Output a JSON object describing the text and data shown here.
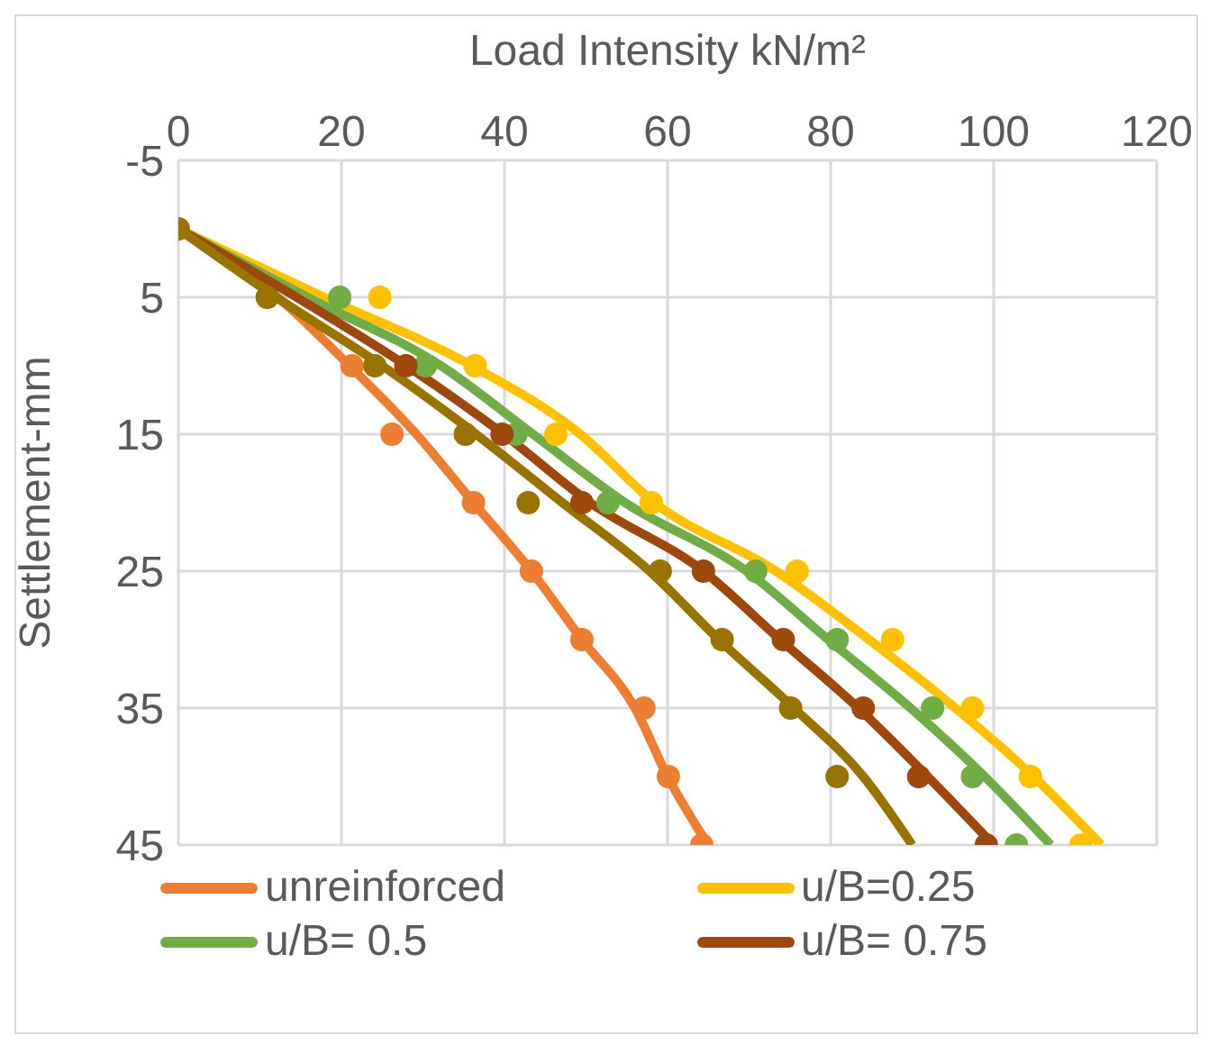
{
  "chart_data": {
    "type": "scatter",
    "xlabel": "Load Intensity kN/m²",
    "ylabel": "Settlement-mm",
    "xlim": [
      0,
      120
    ],
    "xticks": [
      0,
      20,
      40,
      60,
      80,
      100,
      120
    ],
    "ylim": [
      45,
      -5
    ],
    "yticks": [
      -5,
      5,
      15,
      25,
      35,
      45
    ],
    "grid": true,
    "legend": "bottom",
    "series": [
      {
        "name": "unreinforced",
        "type": "scatter",
        "marker": "circle",
        "color": "#ed7d31",
        "x": [
          21.3,
          26.2,
          36.2,
          43.3,
          49.5,
          57.1,
          60.1,
          64.2
        ],
        "values": [
          10,
          15,
          20,
          25,
          30,
          35,
          40,
          45
        ]
      },
      {
        "name": "u/B=0.25",
        "type": "scatter",
        "marker": "circle",
        "color": "#ffc000",
        "x": [
          24.7,
          36.4,
          46.3,
          58,
          75.9,
          87.6,
          97.4,
          104.5,
          110.7
        ],
        "values": [
          5,
          10,
          15,
          20,
          25,
          30,
          35,
          40,
          45
        ]
      },
      {
        "name": "u/B= 0.5",
        "type": "scatter",
        "marker": "circle",
        "color": "#70ad47",
        "x": [
          19.8,
          30.3,
          41.4,
          52.7,
          70.8,
          80.8,
          92.5,
          97.4,
          102.8
        ],
        "values": [
          5,
          10,
          15,
          20,
          25,
          30,
          35,
          40,
          45
        ]
      },
      {
        "name": "u/B= 0.75",
        "type": "scatter",
        "marker": "circle",
        "color": "#9e480e",
        "x": [
          27.9,
          39.7,
          49.5,
          64.4,
          74.2,
          84,
          90.8,
          99.1
        ],
        "values": [
          10,
          15,
          20,
          25,
          30,
          35,
          40,
          45
        ]
      },
      {
        "marker": "circle",
        "color": "#997300",
        "x": [
          0,
          10.9,
          24.1,
          35.2,
          42.9,
          59.1,
          66.7,
          75.1,
          80.8
        ],
        "values": [
          0,
          5,
          10,
          15,
          20,
          25,
          30,
          35,
          40
        ]
      },
      {
        "type": "line",
        "marker": "none",
        "color": "#ed7d31",
        "x": [
          0,
          12.2,
          21,
          29.2,
          36.2,
          43.3,
          49.5,
          56,
          60,
          65
        ],
        "values": [
          0,
          5,
          10,
          15,
          20,
          25,
          30,
          35,
          40,
          45
        ]
      },
      {
        "type": "line",
        "marker": "none",
        "color": "#ffc000",
        "x": [
          0,
          17.9,
          36,
          49.3,
          58.4,
          73.3,
          84.7,
          95.3,
          104.9,
          113.2
        ],
        "values": [
          0,
          5,
          10,
          15,
          20,
          25,
          30,
          35,
          40,
          45
        ]
      },
      {
        "type": "line",
        "marker": "none",
        "color": "#70ad47",
        "x": [
          0,
          15.8,
          32.2,
          43.5,
          54.8,
          69.7,
          79.7,
          89.8,
          98.9,
          107
        ],
        "values": [
          0,
          5,
          10,
          15,
          20,
          25,
          30,
          35,
          40,
          45
        ]
      },
      {
        "type": "line",
        "marker": "none",
        "color": "#9e480e",
        "x": [
          0,
          14.5,
          28,
          39.9,
          50.5,
          64.4,
          73.8,
          83.4,
          91.9,
          100
        ],
        "values": [
          0,
          5,
          10,
          15,
          20,
          25,
          30,
          35,
          40,
          45
        ]
      },
      {
        "type": "line",
        "marker": "none",
        "color": "#997300",
        "x": [
          0,
          12,
          25,
          36.5,
          47.1,
          57.8,
          66.3,
          75.5,
          84,
          90
        ],
        "values": [
          0,
          5,
          10,
          15,
          20,
          25,
          30,
          35,
          40,
          45
        ]
      }
    ]
  }
}
